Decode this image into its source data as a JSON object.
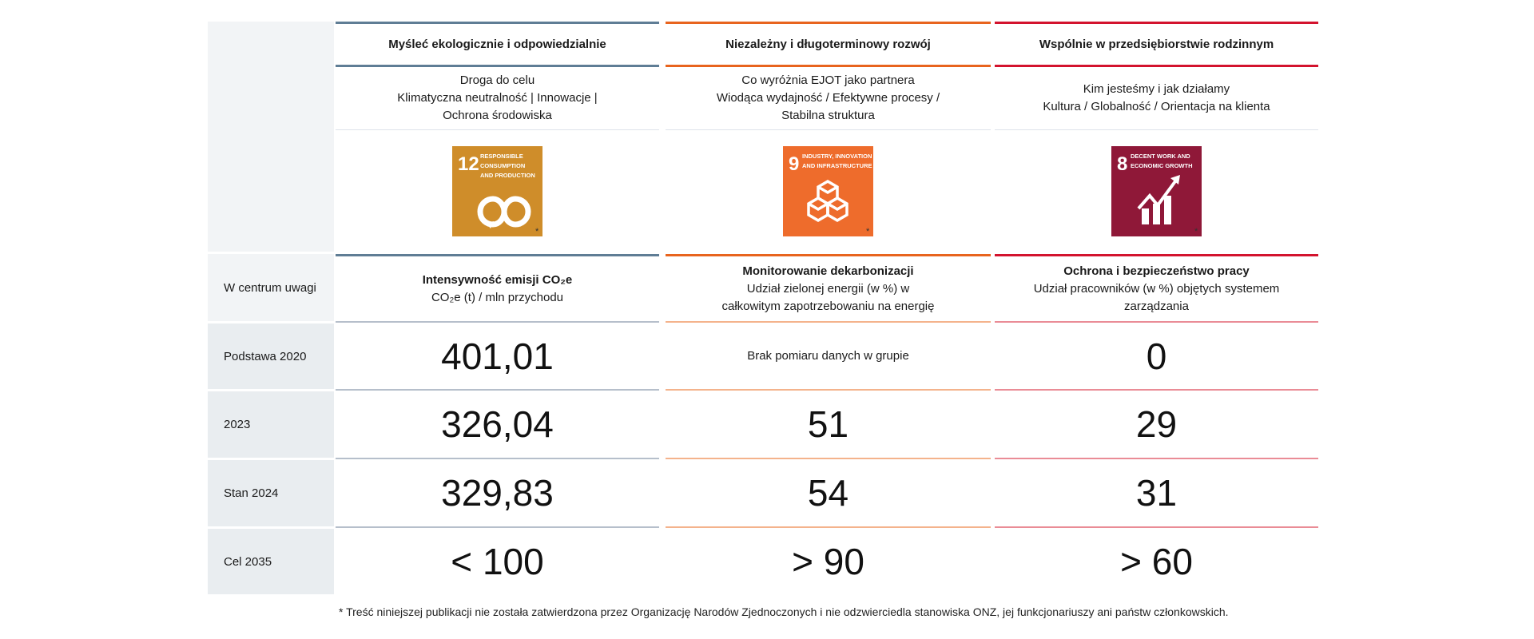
{
  "row_labels": [
    "W centrum uwagi",
    "Podstawa 2020",
    "2023",
    "Stan 2024",
    "Cel 2035"
  ],
  "columns": [
    {
      "title": "Myśleć ekologicznie i odpowiedzialnie",
      "sub": [
        "Droga do celu",
        "Klimatyczna neutralność | Innowacje |",
        "Ochrona środowiska"
      ],
      "sdg": {
        "number": "12",
        "text": [
          "RESPONSIBLE",
          "CONSUMPTION",
          "AND PRODUCTION"
        ],
        "color": "#cf8d2a",
        "icon": "infinity-icon"
      },
      "focus_title": "Intensywność emisji CO₂e",
      "focus_sub": [
        "CO₂e (t) / mln przychodu"
      ],
      "values": [
        "401,01",
        "326,04",
        "329,83",
        "< 100"
      ],
      "accent": "#5f7d95"
    },
    {
      "title": "Niezależny i długoterminowy rozwój",
      "sub": [
        "Co wyróżnia EJOT jako partnera",
        "Wiodąca wydajność / Efektywne procesy /",
        "Stabilna struktura"
      ],
      "sdg": {
        "number": "9",
        "text": [
          "INDUSTRY, INNOVATION",
          "AND INFRASTRUCTURE"
        ],
        "color": "#ee6c2c",
        "icon": "cubes-icon"
      },
      "focus_title": "Monitorowanie dekarbonizacji",
      "focus_sub": [
        "Udział zielonej energii (w %) w",
        "całkowitym zapotrzebowaniu na energię"
      ],
      "values": [
        "Brak pomiaru danych w grupie",
        "51",
        "54",
        "> 90"
      ],
      "accent": "#e8641e"
    },
    {
      "title": "Wspólnie w przedsiębiorstwie rodzinnym",
      "sub": [
        "Kim jesteśmy i jak działamy",
        "Kultura / Globalność / Orientacja na klienta"
      ],
      "sdg": {
        "number": "8",
        "text": [
          "DECENT WORK AND",
          "ECONOMIC GROWTH"
        ],
        "color": "#8f1838",
        "icon": "growth-chart-icon"
      },
      "focus_title": "Ochrona i bezpieczeństwo pracy",
      "focus_sub": [
        "Udział pracowników (w %) objętych systemem",
        "zarządzania"
      ],
      "values": [
        "0",
        "29",
        "31",
        "> 60"
      ],
      "accent": "#d3132e"
    }
  ],
  "sdg_asterisk": "*",
  "footnote": "* Treść niniejszej publikacji nie została zatwierdzona przez Organizację Narodów Zjednoczonych i nie odzwierciedla stanowiska ONZ, jej funkcjonariuszy ani państw członkowskich."
}
